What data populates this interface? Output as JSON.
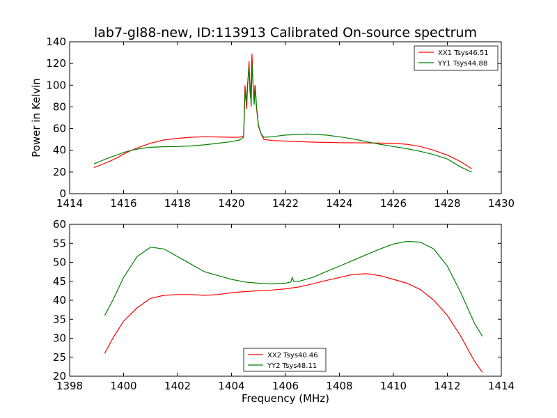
{
  "title": "lab7-gl88-new, ID:113913 Calibrated On-source spectrum",
  "chart_data": [
    {
      "type": "line",
      "ylabel": "Power in Kelvin",
      "xlabel": "",
      "xlim": [
        1414,
        1430
      ],
      "ylim": [
        0,
        140
      ],
      "xticks": [
        1414,
        1416,
        1418,
        1420,
        1422,
        1424,
        1426,
        1428,
        1430
      ],
      "yticks": [
        0,
        20,
        40,
        60,
        80,
        100,
        120,
        140
      ],
      "legend_position": "top-right",
      "series": [
        {
          "name": "XX1 Tsys46.51",
          "color": "#ff0000",
          "points": [
            [
              1414.9,
              24
            ],
            [
              1415.2,
              27
            ],
            [
              1415.5,
              30
            ],
            [
              1415.8,
              33.5
            ],
            [
              1416,
              36.5
            ],
            [
              1416.3,
              40
            ],
            [
              1416.6,
              43
            ],
            [
              1417,
              46.5
            ],
            [
              1417.5,
              49.5
            ],
            [
              1418,
              51
            ],
            [
              1418.5,
              52
            ],
            [
              1419,
              52.5
            ],
            [
              1419.5,
              52.3
            ],
            [
              1420,
              52
            ],
            [
              1420.3,
              52
            ],
            [
              1420.45,
              53
            ],
            [
              1420.5,
              100
            ],
            [
              1420.53,
              90
            ],
            [
              1420.56,
              78
            ],
            [
              1420.6,
              100
            ],
            [
              1420.65,
              122
            ],
            [
              1420.68,
              95
            ],
            [
              1420.71,
              88
            ],
            [
              1420.76,
              129
            ],
            [
              1420.8,
              100
            ],
            [
              1420.84,
              88
            ],
            [
              1420.87,
              100
            ],
            [
              1420.92,
              80
            ],
            [
              1421,
              62
            ],
            [
              1421.1,
              55
            ],
            [
              1421.2,
              50
            ],
            [
              1421.5,
              49
            ],
            [
              1422,
              48.5
            ],
            [
              1423,
              47.5
            ],
            [
              1424,
              47
            ],
            [
              1425,
              46.8
            ],
            [
              1426,
              46.5
            ],
            [
              1426.5,
              45.5
            ],
            [
              1427,
              43.5
            ],
            [
              1427.5,
              40
            ],
            [
              1428,
              35.5
            ],
            [
              1428.5,
              29.5
            ],
            [
              1428.9,
              23
            ]
          ]
        },
        {
          "name": "YY1 Tsys44.88",
          "color": "#008000",
          "points": [
            [
              1414.9,
              27.5
            ],
            [
              1415.2,
              30.5
            ],
            [
              1415.5,
              33.5
            ],
            [
              1415.8,
              36
            ],
            [
              1416,
              38
            ],
            [
              1416.3,
              40
            ],
            [
              1416.6,
              41.5
            ],
            [
              1417,
              42.8
            ],
            [
              1417.5,
              43.3
            ],
            [
              1418,
              43.5
            ],
            [
              1418.5,
              44
            ],
            [
              1419,
              45
            ],
            [
              1419.5,
              46.5
            ],
            [
              1420,
              48
            ],
            [
              1420.3,
              49.5
            ],
            [
              1420.45,
              52
            ],
            [
              1420.5,
              92
            ],
            [
              1420.55,
              85
            ],
            [
              1420.6,
              102
            ],
            [
              1420.65,
              116
            ],
            [
              1420.7,
              95
            ],
            [
              1420.73,
              80
            ],
            [
              1420.76,
              120
            ],
            [
              1420.8,
              100
            ],
            [
              1420.84,
              82
            ],
            [
              1420.88,
              100
            ],
            [
              1420.93,
              80
            ],
            [
              1421,
              63
            ],
            [
              1421.1,
              55
            ],
            [
              1421.2,
              52
            ],
            [
              1421.5,
              52.5
            ],
            [
              1422,
              54
            ],
            [
              1422.8,
              55
            ],
            [
              1423.5,
              54
            ],
            [
              1424,
              52.5
            ],
            [
              1424.5,
              50.5
            ],
            [
              1425,
              48
            ],
            [
              1425.5,
              45.5
            ],
            [
              1426,
              43.5
            ],
            [
              1426.5,
              41.5
            ],
            [
              1427,
              39
            ],
            [
              1427.5,
              36
            ],
            [
              1428,
              32
            ],
            [
              1428.5,
              24.5
            ],
            [
              1428.9,
              20
            ]
          ]
        }
      ]
    },
    {
      "type": "line",
      "xlabel": "Frequency (MHz)",
      "ylabel": "",
      "xlim": [
        1398,
        1414
      ],
      "ylim": [
        20,
        60
      ],
      "xticks": [
        1398,
        1400,
        1402,
        1404,
        1406,
        1408,
        1410,
        1412,
        1414
      ],
      "yticks": [
        20,
        25,
        30,
        35,
        40,
        45,
        50,
        55,
        60
      ],
      "legend_position": "bottom-center",
      "series": [
        {
          "name": "XX2 Tsys40.46",
          "color": "#ff0000",
          "points": [
            [
              1399.3,
              26
            ],
            [
              1399.6,
              30
            ],
            [
              1400,
              34.5
            ],
            [
              1400.5,
              38
            ],
            [
              1401,
              40.5
            ],
            [
              1401.5,
              41.3
            ],
            [
              1402,
              41.5
            ],
            [
              1402.5,
              41.5
            ],
            [
              1403,
              41.3
            ],
            [
              1403.5,
              41.5
            ],
            [
              1404,
              42
            ],
            [
              1404.5,
              42.3
            ],
            [
              1405,
              42.5
            ],
            [
              1405.5,
              42.7
            ],
            [
              1406,
              43
            ],
            [
              1406.5,
              43.5
            ],
            [
              1407,
              44.3
            ],
            [
              1407.5,
              45.2
            ],
            [
              1408,
              46
            ],
            [
              1408.5,
              46.8
            ],
            [
              1409,
              47
            ],
            [
              1409.5,
              46.5
            ],
            [
              1410,
              45.5
            ],
            [
              1410.5,
              44.5
            ],
            [
              1411,
              42.8
            ],
            [
              1411.5,
              40
            ],
            [
              1412,
              36
            ],
            [
              1412.5,
              30.5
            ],
            [
              1413,
              24
            ],
            [
              1413.3,
              21
            ]
          ]
        },
        {
          "name": "YY2 Tsys48.11",
          "color": "#008000",
          "points": [
            [
              1399.3,
              36
            ],
            [
              1399.6,
              40
            ],
            [
              1400,
              46
            ],
            [
              1400.5,
              51.5
            ],
            [
              1401,
              54
            ],
            [
              1401.5,
              53.5
            ],
            [
              1402,
              51.5
            ],
            [
              1402.5,
              49.5
            ],
            [
              1403,
              47.5
            ],
            [
              1403.5,
              46.5
            ],
            [
              1404,
              45.5
            ],
            [
              1404.5,
              44.8
            ],
            [
              1405,
              44.5
            ],
            [
              1405.5,
              44.3
            ],
            [
              1406,
              44.5
            ],
            [
              1406.2,
              44.8
            ],
            [
              1406.25,
              46
            ],
            [
              1406.3,
              45
            ],
            [
              1406.5,
              45
            ],
            [
              1407,
              46
            ],
            [
              1407.5,
              47.5
            ],
            [
              1408,
              49
            ],
            [
              1408.5,
              50.5
            ],
            [
              1409,
              52
            ],
            [
              1409.5,
              53.5
            ],
            [
              1410,
              54.8
            ],
            [
              1410.5,
              55.5
            ],
            [
              1411,
              55.3
            ],
            [
              1411.5,
              53.5
            ],
            [
              1412,
              49
            ],
            [
              1412.5,
              42
            ],
            [
              1413,
              34
            ],
            [
              1413.3,
              30.5
            ]
          ]
        }
      ]
    }
  ]
}
